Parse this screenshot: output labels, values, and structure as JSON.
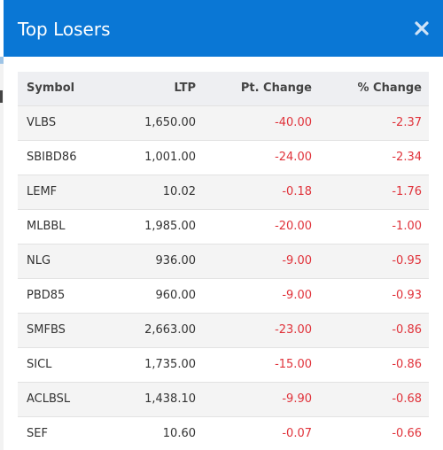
{
  "modal": {
    "title": "Top Losers",
    "close_icon": "close-icon"
  },
  "table": {
    "columns": [
      "Symbol",
      "LTP",
      "Pt. Change",
      "% Change"
    ],
    "rows": [
      {
        "symbol": "VLBS",
        "ltp": "1,650.00",
        "pt_change": "-40.00",
        "pct_change": "-2.37"
      },
      {
        "symbol": "SBIBD86",
        "ltp": "1,001.00",
        "pt_change": "-24.00",
        "pct_change": "-2.34"
      },
      {
        "symbol": "LEMF",
        "ltp": "10.02",
        "pt_change": "-0.18",
        "pct_change": "-1.76"
      },
      {
        "symbol": "MLBBL",
        "ltp": "1,985.00",
        "pt_change": "-20.00",
        "pct_change": "-1.00"
      },
      {
        "symbol": "NLG",
        "ltp": "936.00",
        "pt_change": "-9.00",
        "pct_change": "-0.95"
      },
      {
        "symbol": "PBD85",
        "ltp": "960.00",
        "pt_change": "-9.00",
        "pct_change": "-0.93"
      },
      {
        "symbol": "SMFBS",
        "ltp": "2,663.00",
        "pt_change": "-23.00",
        "pct_change": "-0.86"
      },
      {
        "symbol": "SICL",
        "ltp": "1,735.00",
        "pt_change": "-15.00",
        "pct_change": "-0.86"
      },
      {
        "symbol": "ACLBSL",
        "ltp": "1,438.10",
        "pt_change": "-9.90",
        "pct_change": "-0.68"
      },
      {
        "symbol": "SEF",
        "ltp": "10.60",
        "pt_change": "-0.07",
        "pct_change": "-0.66"
      }
    ]
  },
  "colors": {
    "header_bg": "#0a77d5",
    "negative": "#e0323a",
    "table_head_bg": "#eeeff2"
  }
}
